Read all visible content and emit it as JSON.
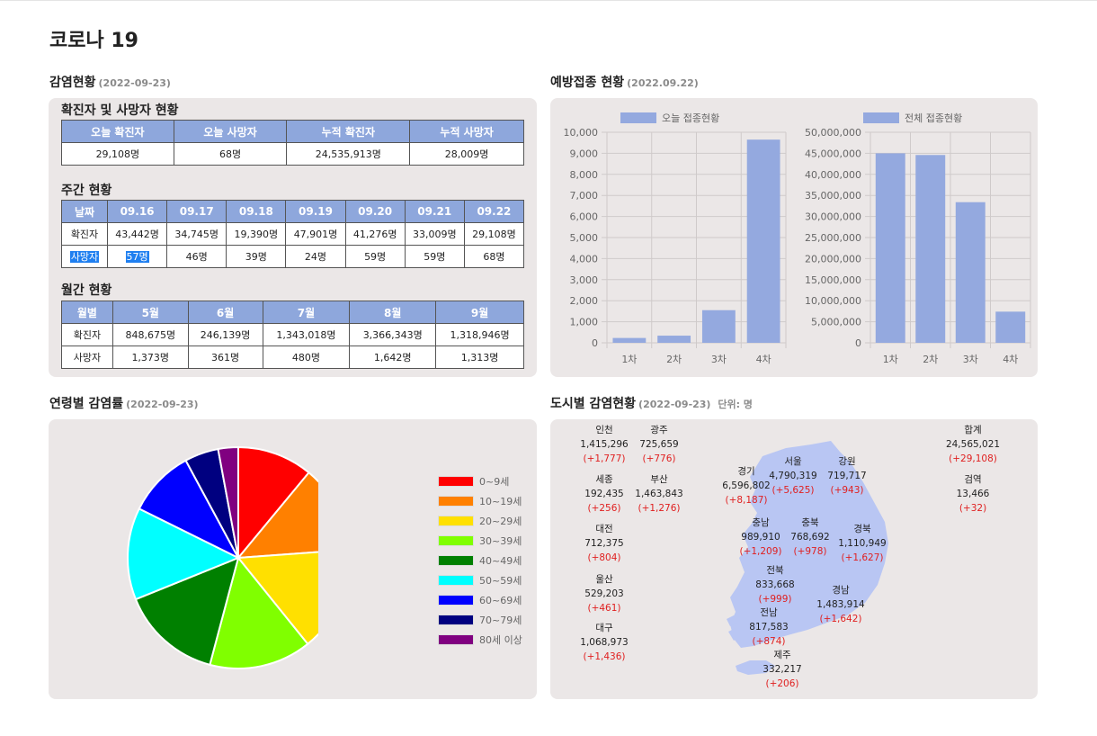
{
  "title": "코로나 19",
  "infection": {
    "heading": "감염현황",
    "date": "(2022-09-23)",
    "summary": {
      "title": "확진자 및 사망자 현황",
      "headers": [
        "오늘 확진자",
        "오늘 사망자",
        "누적 확진자",
        "누적 사망자"
      ],
      "values": [
        "29,108명",
        "68명",
        "24,535,913명",
        "28,009명"
      ]
    },
    "weekly": {
      "title": "주간 현황",
      "corner": "날짜",
      "dates": [
        "09.16",
        "09.17",
        "09.18",
        "09.19",
        "09.20",
        "09.21",
        "09.22"
      ],
      "rows": [
        {
          "label": "확진자",
          "values": [
            "43,442명",
            "34,745명",
            "19,390명",
            "47,901명",
            "41,276명",
            "33,009명",
            "29,108명"
          ]
        },
        {
          "label": "사망자",
          "values": [
            "57명",
            "46명",
            "39명",
            "24명",
            "59명",
            "59명",
            "68명"
          ]
        }
      ]
    },
    "monthly": {
      "title": "월간 현황",
      "corner": "월별",
      "months": [
        "5월",
        "6월",
        "7월",
        "8월",
        "9월"
      ],
      "rows": [
        {
          "label": "확진자",
          "values": [
            "848,675명",
            "246,139명",
            "1,343,018명",
            "3,366,343명",
            "1,318,946명"
          ]
        },
        {
          "label": "사망자",
          "values": [
            "1,373명",
            "361명",
            "480명",
            "1,642명",
            "1,313명"
          ]
        }
      ]
    }
  },
  "vaccination": {
    "heading": "예방접종 현황",
    "date": "(2022.09.22)"
  },
  "age": {
    "heading": "연령별 감염률",
    "date": "(2022-09-23)"
  },
  "city": {
    "heading": "도시별 감염현황",
    "date": "(2022-09-23)",
    "unit": "단위: 명",
    "items": [
      {
        "name": "인천",
        "total": "1,415,296",
        "delta": "(+1,777)"
      },
      {
        "name": "광주",
        "total": "725,659",
        "delta": "(+776)"
      },
      {
        "name": "세종",
        "total": "192,435",
        "delta": "(+256)"
      },
      {
        "name": "부산",
        "total": "1,463,843",
        "delta": "(+1,276)"
      },
      {
        "name": "대전",
        "total": "712,375",
        "delta": "(+804)"
      },
      {
        "name": "울산",
        "total": "529,203",
        "delta": "(+461)"
      },
      {
        "name": "대구",
        "total": "1,068,973",
        "delta": "(+1,436)"
      },
      {
        "name": "경기",
        "total": "6,596,802",
        "delta": "(+8,187)"
      },
      {
        "name": "서울",
        "total": "4,790,319",
        "delta": "(+5,625)"
      },
      {
        "name": "강원",
        "total": "719,717",
        "delta": "(+943)"
      },
      {
        "name": "충남",
        "total": "989,910",
        "delta": "(+1,209)"
      },
      {
        "name": "충북",
        "total": "768,692",
        "delta": "(+978)"
      },
      {
        "name": "경북",
        "total": "1,110,949",
        "delta": "(+1,627)"
      },
      {
        "name": "전북",
        "total": "833,668",
        "delta": "(+999)"
      },
      {
        "name": "경남",
        "total": "1,483,914",
        "delta": "(+1,642)"
      },
      {
        "name": "전남",
        "total": "817,583",
        "delta": "(+874)"
      },
      {
        "name": "제주",
        "total": "332,217",
        "delta": "(+206)"
      },
      {
        "name": "합계",
        "total": "24,565,021",
        "delta": "(+29,108)"
      },
      {
        "name": "검역",
        "total": "13,466",
        "delta": "(+32)"
      }
    ],
    "colors": {
      "map": "#b9c6f3",
      "delta": "#e02020"
    }
  },
  "chart_data": [
    {
      "type": "bar",
      "legend": "오늘 접종현황",
      "categories": [
        "1차",
        "2차",
        "3차",
        "4차"
      ],
      "values": [
        230,
        340,
        1550,
        9650
      ],
      "ylim": [
        0,
        10000
      ],
      "yticks": [
        "10,000",
        "9,000",
        "8,000",
        "7,000",
        "6,000",
        "5,000",
        "4,000",
        "3,000",
        "2,000",
        "1,000",
        "0"
      ],
      "grid": true,
      "color": "#94a9df",
      "legend_position": "top"
    },
    {
      "type": "bar",
      "legend": "전체 접종현황",
      "categories": [
        "1차",
        "2차",
        "3차",
        "4차"
      ],
      "values": [
        45000000,
        44600000,
        33400000,
        7400000
      ],
      "ylim": [
        0,
        50000000
      ],
      "yticks": [
        "50,000,000",
        "45,000,000",
        "40,000,000",
        "35,000,000",
        "30,000,000",
        "25,000,000",
        "20,000,000",
        "15,000,000",
        "10,000,000",
        "5,000,000",
        "0"
      ],
      "grid": true,
      "color": "#94a9df",
      "legend_position": "top"
    },
    {
      "type": "pie",
      "labels": [
        "0~9세",
        "10~19세",
        "20~29세",
        "30~39세",
        "40~49세",
        "50~59세",
        "60~69세",
        "70~79세",
        "80세 이상"
      ],
      "values": [
        10.9,
        12.7,
        15.2,
        14.8,
        14.6,
        13.3,
        9.7,
        4.9,
        2.9
      ],
      "colors": [
        "#ff0000",
        "#ff8000",
        "#ffe000",
        "#80ff00",
        "#008000",
        "#00ffff",
        "#0000ff",
        "#000080",
        "#800080"
      ],
      "legend_position": "right"
    }
  ]
}
